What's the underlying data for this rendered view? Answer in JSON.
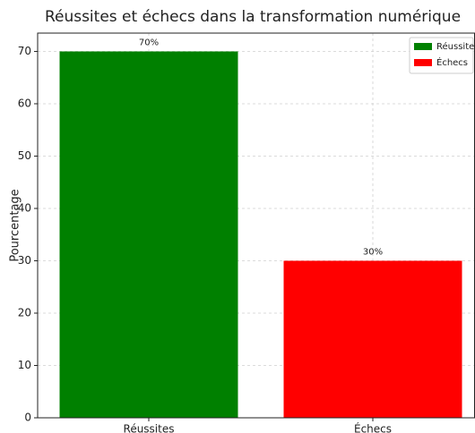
{
  "chart_data": {
    "type": "bar",
    "title": "Réussites et échecs dans la transformation numérique",
    "ylabel": "Pourcentage",
    "categories": [
      "Réussites",
      "Échecs"
    ],
    "values": [
      70,
      30
    ],
    "value_labels": [
      "70%",
      "30%"
    ],
    "colors": [
      "green",
      "red"
    ],
    "ylim": [
      0,
      73.5
    ],
    "yticks": [
      0,
      10,
      20,
      30,
      40,
      50,
      60,
      70
    ],
    "grid": true,
    "legend": "upper right"
  }
}
